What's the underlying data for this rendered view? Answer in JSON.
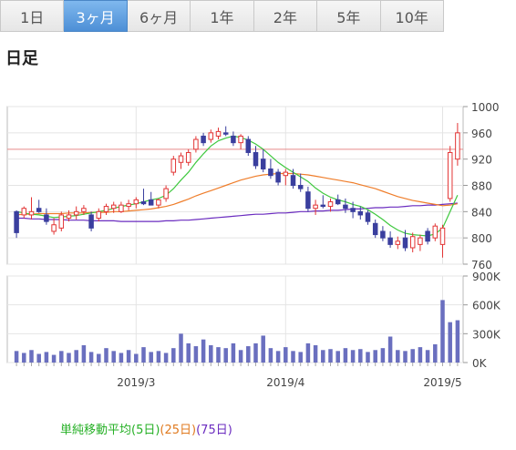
{
  "tabs": [
    {
      "label": "1日",
      "active": false
    },
    {
      "label": "3ヶ月",
      "active": true
    },
    {
      "label": "6ヶ月",
      "active": false
    },
    {
      "label": "1年",
      "active": false
    },
    {
      "label": "2年",
      "active": false
    },
    {
      "label": "5年",
      "active": false
    },
    {
      "label": "10年",
      "active": false
    }
  ],
  "section_title": "日足",
  "legend": {
    "label": "単純移動平均(5日)",
    "ma25": "(25日)",
    "ma75": "(75日)"
  },
  "colors": {
    "up": "#e23434",
    "down": "#3a3f9e",
    "ma5": "#3ec83e",
    "ma25": "#ef7d2a",
    "ma75": "#6a2bbf",
    "ref": "#e88a8a",
    "volume": "#6a6fbf"
  },
  "chart_data": {
    "type": "candlestick",
    "price_ylim": [
      760,
      1000
    ],
    "price_ticks": [
      "1000",
      "960",
      "920",
      "880",
      "840",
      "800",
      "760"
    ],
    "reference_line": 935,
    "volume_ylim": [
      0,
      900000
    ],
    "volume_ticks": [
      "900K",
      "600K",
      "300K",
      "0K"
    ],
    "x_labels": [
      {
        "label": "2019/3",
        "index": 16
      },
      {
        "label": "2019/4",
        "index": 36
      },
      {
        "label": "2019/5",
        "index": 57
      }
    ],
    "candles": [
      {
        "o": 840,
        "h": 842,
        "l": 800,
        "c": 808
      },
      {
        "o": 835,
        "h": 848,
        "l": 830,
        "c": 845
      },
      {
        "o": 835,
        "h": 862,
        "l": 828,
        "c": 840
      },
      {
        "o": 845,
        "h": 858,
        "l": 838,
        "c": 840
      },
      {
        "o": 835,
        "h": 845,
        "l": 820,
        "c": 825
      },
      {
        "o": 810,
        "h": 830,
        "l": 805,
        "c": 820
      },
      {
        "o": 815,
        "h": 840,
        "l": 810,
        "c": 835
      },
      {
        "o": 830,
        "h": 842,
        "l": 825,
        "c": 835
      },
      {
        "o": 835,
        "h": 848,
        "l": 828,
        "c": 840
      },
      {
        "o": 840,
        "h": 850,
        "l": 835,
        "c": 845
      },
      {
        "o": 835,
        "h": 840,
        "l": 810,
        "c": 815
      },
      {
        "o": 830,
        "h": 845,
        "l": 825,
        "c": 840
      },
      {
        "o": 840,
        "h": 852,
        "l": 835,
        "c": 848
      },
      {
        "o": 845,
        "h": 855,
        "l": 838,
        "c": 850
      },
      {
        "o": 840,
        "h": 855,
        "l": 838,
        "c": 850
      },
      {
        "o": 848,
        "h": 858,
        "l": 842,
        "c": 852
      },
      {
        "o": 852,
        "h": 862,
        "l": 845,
        "c": 858
      },
      {
        "o": 855,
        "h": 875,
        "l": 850,
        "c": 852
      },
      {
        "o": 858,
        "h": 870,
        "l": 852,
        "c": 850
      },
      {
        "o": 850,
        "h": 860,
        "l": 845,
        "c": 858
      },
      {
        "o": 860,
        "h": 880,
        "l": 855,
        "c": 875
      },
      {
        "o": 900,
        "h": 925,
        "l": 895,
        "c": 920
      },
      {
        "o": 915,
        "h": 930,
        "l": 905,
        "c": 925
      },
      {
        "o": 915,
        "h": 935,
        "l": 910,
        "c": 930
      },
      {
        "o": 935,
        "h": 955,
        "l": 930,
        "c": 950
      },
      {
        "o": 955,
        "h": 960,
        "l": 940,
        "c": 945
      },
      {
        "o": 950,
        "h": 965,
        "l": 945,
        "c": 960
      },
      {
        "o": 955,
        "h": 968,
        "l": 950,
        "c": 962
      },
      {
        "o": 960,
        "h": 970,
        "l": 955,
        "c": 958
      },
      {
        "o": 955,
        "h": 962,
        "l": 940,
        "c": 945
      },
      {
        "o": 945,
        "h": 958,
        "l": 935,
        "c": 955
      },
      {
        "o": 950,
        "h": 955,
        "l": 925,
        "c": 930
      },
      {
        "o": 930,
        "h": 940,
        "l": 905,
        "c": 910
      },
      {
        "o": 920,
        "h": 935,
        "l": 900,
        "c": 905
      },
      {
        "o": 905,
        "h": 920,
        "l": 890,
        "c": 895
      },
      {
        "o": 900,
        "h": 905,
        "l": 880,
        "c": 885
      },
      {
        "o": 895,
        "h": 905,
        "l": 880,
        "c": 900
      },
      {
        "o": 895,
        "h": 905,
        "l": 875,
        "c": 880
      },
      {
        "o": 880,
        "h": 898,
        "l": 870,
        "c": 875
      },
      {
        "o": 870,
        "h": 878,
        "l": 840,
        "c": 845
      },
      {
        "o": 845,
        "h": 858,
        "l": 835,
        "c": 850
      },
      {
        "o": 850,
        "h": 865,
        "l": 845,
        "c": 848
      },
      {
        "o": 848,
        "h": 860,
        "l": 840,
        "c": 855
      },
      {
        "o": 858,
        "h": 866,
        "l": 850,
        "c": 852
      },
      {
        "o": 850,
        "h": 860,
        "l": 838,
        "c": 845
      },
      {
        "o": 845,
        "h": 855,
        "l": 830,
        "c": 840
      },
      {
        "o": 840,
        "h": 848,
        "l": 828,
        "c": 835
      },
      {
        "o": 838,
        "h": 842,
        "l": 820,
        "c": 825
      },
      {
        "o": 822,
        "h": 828,
        "l": 800,
        "c": 805
      },
      {
        "o": 810,
        "h": 818,
        "l": 795,
        "c": 800
      },
      {
        "o": 800,
        "h": 810,
        "l": 785,
        "c": 790
      },
      {
        "o": 790,
        "h": 802,
        "l": 783,
        "c": 795
      },
      {
        "o": 800,
        "h": 812,
        "l": 780,
        "c": 785
      },
      {
        "o": 785,
        "h": 808,
        "l": 778,
        "c": 802
      },
      {
        "o": 790,
        "h": 805,
        "l": 780,
        "c": 800
      },
      {
        "o": 810,
        "h": 815,
        "l": 790,
        "c": 795
      },
      {
        "o": 800,
        "h": 822,
        "l": 795,
        "c": 818
      },
      {
        "o": 790,
        "h": 820,
        "l": 770,
        "c": 815
      },
      {
        "o": 860,
        "h": 940,
        "l": 855,
        "c": 930
      },
      {
        "o": 920,
        "h": 975,
        "l": 910,
        "c": 960
      }
    ],
    "ma5": [
      840,
      838,
      836,
      835,
      833,
      831,
      832,
      833,
      834,
      836,
      838,
      840,
      842,
      845,
      848,
      850,
      852,
      855,
      858,
      860,
      865,
      875,
      888,
      900,
      915,
      928,
      940,
      948,
      952,
      955,
      953,
      949,
      943,
      935,
      925,
      915,
      907,
      900,
      893,
      886,
      876,
      868,
      862,
      858,
      855,
      851,
      848,
      843,
      836,
      828,
      819,
      812,
      807,
      805,
      804,
      803,
      806,
      815,
      840,
      865
    ],
    "ma25": [
      835,
      836,
      836,
      837,
      837,
      837,
      837,
      838,
      838,
      838,
      839,
      839,
      839,
      840,
      840,
      841,
      842,
      843,
      844,
      846,
      848,
      851,
      855,
      859,
      864,
      868,
      872,
      876,
      880,
      884,
      888,
      891,
      894,
      896,
      897,
      898,
      898,
      898,
      897,
      896,
      894,
      892,
      890,
      888,
      886,
      884,
      881,
      878,
      875,
      871,
      867,
      863,
      860,
      857,
      855,
      853,
      851,
      849,
      850,
      852
    ],
    "ma75": [
      830,
      830,
      829,
      829,
      828,
      828,
      828,
      827,
      827,
      827,
      826,
      826,
      826,
      826,
      825,
      825,
      825,
      825,
      825,
      825,
      826,
      826,
      827,
      827,
      828,
      829,
      830,
      831,
      832,
      833,
      834,
      835,
      836,
      836,
      837,
      838,
      838,
      839,
      840,
      840,
      841,
      841,
      842,
      842,
      843,
      844,
      844,
      845,
      846,
      846,
      847,
      847,
      848,
      849,
      849,
      850,
      850,
      851,
      852,
      853
    ],
    "volume": [
      120000,
      100000,
      130000,
      90000,
      110000,
      80000,
      120000,
      100000,
      130000,
      180000,
      110000,
      90000,
      150000,
      120000,
      100000,
      130000,
      90000,
      160000,
      110000,
      120000,
      100000,
      150000,
      300000,
      200000,
      170000,
      240000,
      180000,
      160000,
      150000,
      200000,
      130000,
      170000,
      200000,
      280000,
      150000,
      120000,
      160000,
      120000,
      110000,
      200000,
      180000,
      130000,
      140000,
      120000,
      150000,
      130000,
      140000,
      110000,
      130000,
      150000,
      270000,
      130000,
      120000,
      140000,
      160000,
      130000,
      190000,
      650000,
      420000,
      440000
    ]
  }
}
